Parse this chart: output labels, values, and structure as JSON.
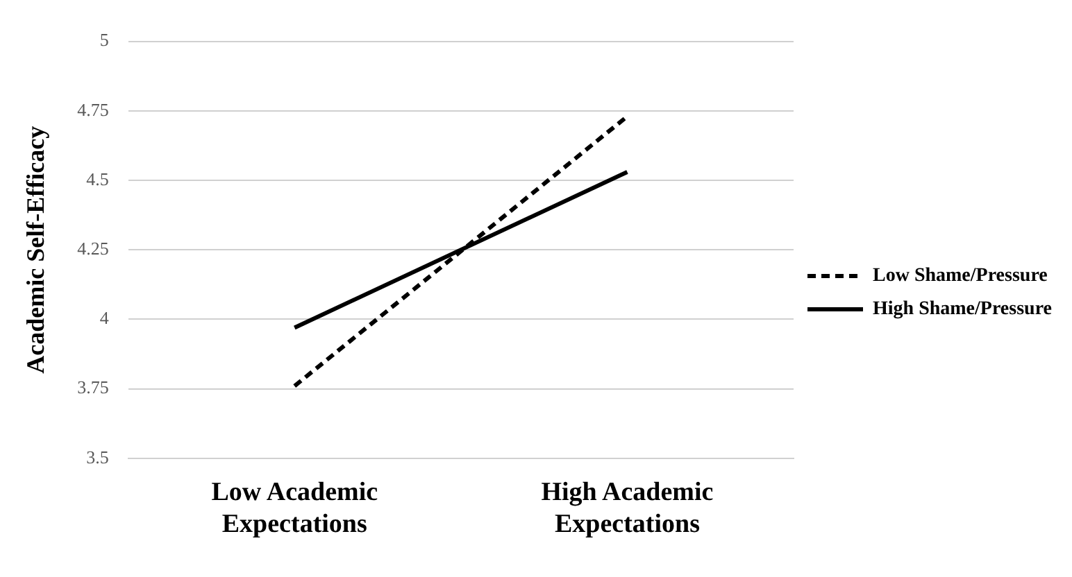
{
  "chart_data": {
    "type": "line",
    "ylabel": "Academic Self-Efficacy",
    "categories": [
      "Low Academic Expectations",
      "High Academic Expectations"
    ],
    "series": [
      {
        "name": "Low Shame/Pressure",
        "color": "#000000",
        "line_style": "dashed",
        "values": [
          3.76,
          4.73
        ]
      },
      {
        "name": "High Shame/Pressure",
        "color": "#000000",
        "line_style": "solid",
        "values": [
          3.97,
          4.53
        ]
      }
    ],
    "ylim": [
      3.5,
      5
    ],
    "yticks": [
      3.5,
      3.75,
      4,
      4.25,
      4.5,
      4.75,
      5
    ],
    "grid": "y",
    "legend": "right",
    "marker": "none"
  }
}
